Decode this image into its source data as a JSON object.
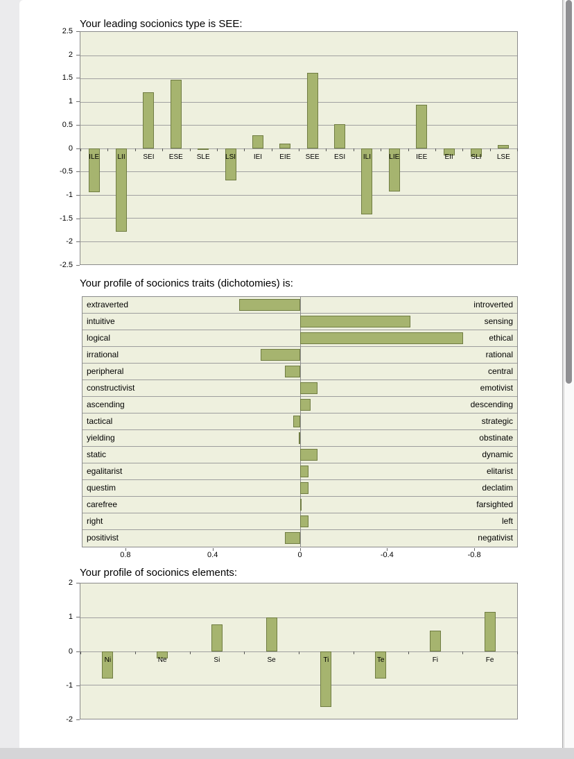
{
  "page": {
    "bg_color": "#ebebed",
    "panel_color": "#ffffff",
    "chart_bg": "#eef0de",
    "bar_fill": "#a6b46f",
    "bar_border": "#6f7c42",
    "grid_color": "#a0a0a0",
    "scrollbar_thumb_color": "#8f8f92"
  },
  "chart_data": [
    {
      "type": "bar",
      "title": "Your leading socionics type is SEE:",
      "categories": [
        "ILE",
        "LII",
        "SEI",
        "ESE",
        "SLE",
        "LSI",
        "IEI",
        "EIE",
        "SEE",
        "ESI",
        "ILI",
        "LIE",
        "IEE",
        "EII",
        "SLI",
        "LSE"
      ],
      "values": [
        -0.95,
        -1.8,
        1.2,
        1.47,
        -0.02,
        -0.7,
        0.28,
        0.1,
        1.62,
        0.52,
        -1.43,
        -0.93,
        0.93,
        -0.15,
        -0.18,
        0.06
      ],
      "ylim": [
        -2.5,
        2.5
      ],
      "yticks": [
        2.5,
        2,
        1.5,
        1,
        0.5,
        0,
        -0.5,
        -1,
        -1.5,
        -2,
        -2.5
      ],
      "grid": true,
      "xlabel": "",
      "ylabel": ""
    },
    {
      "type": "bar-horizontal-diverging",
      "title": "Your profile of socionics traits (dichotomies) is:",
      "rows": [
        {
          "left": "extraverted",
          "right": "introverted",
          "value": 0.28
        },
        {
          "left": "intuitive",
          "right": "sensing",
          "value": -0.51
        },
        {
          "left": "logical",
          "right": "ethical",
          "value": -0.75
        },
        {
          "left": "irrational",
          "right": "rational",
          "value": 0.18
        },
        {
          "left": "peripheral",
          "right": "central",
          "value": 0.07
        },
        {
          "left": "constructivist",
          "right": "emotivist",
          "value": -0.08
        },
        {
          "left": "ascending",
          "right": "descending",
          "value": -0.05
        },
        {
          "left": "tactical",
          "right": "strategic",
          "value": 0.03
        },
        {
          "left": "yielding",
          "right": "obstinate",
          "value": 0.005
        },
        {
          "left": "static",
          "right": "dynamic",
          "value": -0.08
        },
        {
          "left": "egalitarist",
          "right": "elitarist",
          "value": -0.04
        },
        {
          "left": "questim",
          "right": "declatim",
          "value": -0.04
        },
        {
          "left": "carefree",
          "right": "farsighted",
          "value": -0.005
        },
        {
          "left": "right",
          "right": "left",
          "value": -0.04
        },
        {
          "left": "positivist",
          "right": "negativist",
          "value": 0.07
        }
      ],
      "xlim": [
        1,
        -1
      ],
      "xticks": [
        0.8,
        0.4,
        0,
        -0.4,
        -0.8
      ],
      "xtick_labels": [
        "0.8",
        "0.4",
        "0",
        "-0.4",
        "-0.8"
      ]
    },
    {
      "type": "bar",
      "title": "Your profile of socionics elements:",
      "categories": [
        "Ni",
        "Ne",
        "Si",
        "Se",
        "Ti",
        "Te",
        "Fi",
        "Fe"
      ],
      "values": [
        -0.82,
        -0.21,
        0.78,
        1.0,
        -1.65,
        -0.82,
        0.6,
        1.15
      ],
      "ylim": [
        -2,
        2
      ],
      "yticks": [
        2,
        1,
        0,
        -1,
        -2
      ],
      "grid": true,
      "xlabel": "",
      "ylabel": ""
    }
  ]
}
